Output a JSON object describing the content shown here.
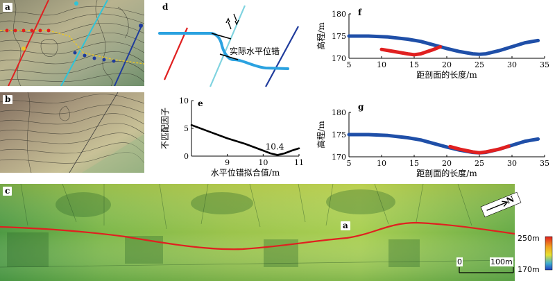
{
  "panels": {
    "a": {
      "label": "a"
    },
    "b": {
      "label": "b"
    },
    "c": {
      "label": "c",
      "marker": "a",
      "north": "N",
      "scale_zero": "0",
      "scale_len": "100m",
      "legend_max": "250m",
      "legend_min": "170m"
    },
    "d": {
      "label": "d",
      "annotation": "实际水平位错"
    },
    "e": {
      "label": "e"
    },
    "f": {
      "label": "f"
    },
    "g": {
      "label": "g"
    }
  },
  "colors": {
    "fault_blue": "#29a3e0",
    "river_blue": "#1f5bb0",
    "red_profile": "#e02020",
    "cyan_profile": "#2fc4d8",
    "navy_profile": "#1f3b9c"
  },
  "chart_data": [
    {
      "id": "e",
      "type": "line",
      "title": "",
      "xlabel": "水平位错拟合值/m",
      "ylabel": "不匹配因子",
      "xlim": [
        8,
        11
      ],
      "ylim": [
        0,
        10
      ],
      "xticks": [
        9,
        10,
        11
      ],
      "yticks": [
        0,
        5,
        10
      ],
      "annotation": "10.4",
      "x": [
        8.0,
        8.5,
        9.0,
        9.5,
        10.0,
        10.2,
        10.4,
        10.6,
        10.8,
        11.0
      ],
      "y": [
        5.6,
        4.4,
        3.2,
        2.2,
        1.0,
        0.5,
        0.2,
        0.5,
        1.0,
        1.4
      ]
    },
    {
      "id": "f",
      "type": "line",
      "title": "",
      "xlabel": "距剖面的长度/m",
      "ylabel": "高程/m",
      "xlim": [
        5,
        35
      ],
      "ylim": [
        170,
        180
      ],
      "xticks": [
        5,
        10,
        15,
        20,
        25,
        30,
        35
      ],
      "yticks": [
        170,
        175,
        180
      ],
      "series": [
        {
          "color": "#1f4fa8",
          "x": [
            5,
            8,
            11,
            14,
            16,
            18,
            20,
            22,
            24,
            25,
            26,
            28,
            30,
            32,
            34
          ],
          "y": [
            175.0,
            175.0,
            174.8,
            174.3,
            173.8,
            173.0,
            172.2,
            171.5,
            171.0,
            170.9,
            171.0,
            171.7,
            172.6,
            173.5,
            174.0
          ]
        },
        {
          "color": "#e02020",
          "x": [
            10,
            12,
            14,
            15,
            16,
            17,
            18,
            19
          ],
          "y": [
            172.0,
            171.5,
            171.0,
            170.8,
            171.0,
            171.5,
            172.0,
            172.6
          ]
        }
      ]
    },
    {
      "id": "g",
      "type": "line",
      "title": "",
      "xlabel": "距剖面的长度/m",
      "ylabel": "高程/m",
      "xlim": [
        5,
        35
      ],
      "ylim": [
        170,
        180
      ],
      "xticks": [
        5,
        10,
        15,
        20,
        25,
        30,
        35
      ],
      "yticks": [
        170,
        175,
        180
      ],
      "series": [
        {
          "color": "#1f4fa8",
          "x": [
            5,
            8,
            11,
            14,
            16,
            18,
            20,
            22,
            24,
            25,
            26,
            28,
            30,
            32,
            34
          ],
          "y": [
            175.0,
            175.0,
            174.8,
            174.3,
            173.8,
            173.0,
            172.2,
            171.5,
            171.0,
            170.9,
            171.0,
            171.7,
            172.6,
            173.5,
            174.0
          ]
        },
        {
          "color": "#e02020",
          "x": [
            20.5,
            22,
            24,
            25,
            26,
            28,
            29.5
          ],
          "y": [
            172.3,
            171.7,
            171.1,
            170.9,
            171.1,
            171.7,
            172.4
          ]
        }
      ]
    }
  ]
}
